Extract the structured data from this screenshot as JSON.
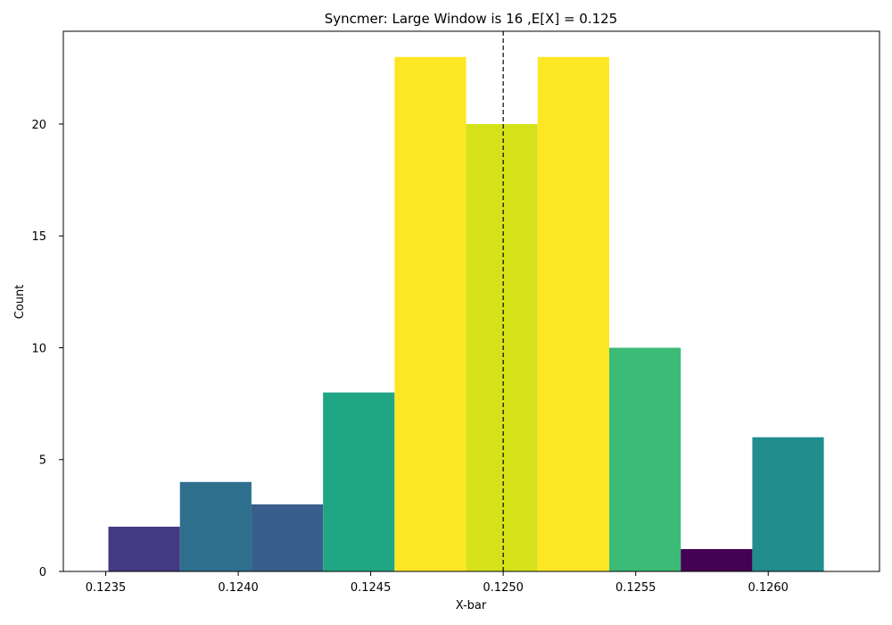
{
  "chart_data": {
    "type": "bar",
    "title": "Syncmer: Large Window is 16 ,E[X] = 0.125",
    "xlabel": "X-bar",
    "ylabel": "Count",
    "xlim": [
      0.12334,
      0.12642
    ],
    "ylim": [
      0,
      24.15
    ],
    "bins": [
      {
        "x0": 0.12351,
        "x1": 0.12378,
        "count": 2,
        "color": "#443983"
      },
      {
        "x0": 0.12378,
        "x1": 0.12405,
        "count": 4,
        "color": "#2e6f8e"
      },
      {
        "x0": 0.12405,
        "x1": 0.12432,
        "count": 3,
        "color": "#3a5e8c"
      },
      {
        "x0": 0.12432,
        "x1": 0.12459,
        "count": 8,
        "color": "#21a685"
      },
      {
        "x0": 0.12459,
        "x1": 0.12486,
        "count": 23,
        "color": "#fde725"
      },
      {
        "x0": 0.12486,
        "x1": 0.12513,
        "count": 20,
        "color": "#d5e21a"
      },
      {
        "x0": 0.12513,
        "x1": 0.1254,
        "count": 23,
        "color": "#fde725"
      },
      {
        "x0": 0.1254,
        "x1": 0.12567,
        "count": 10,
        "color": "#3bbb75"
      },
      {
        "x0": 0.12567,
        "x1": 0.12594,
        "count": 1,
        "color": "#440154"
      },
      {
        "x0": 0.12594,
        "x1": 0.12621,
        "count": 6,
        "color": "#228d8d"
      }
    ],
    "xticks": [
      0.1235,
      0.124,
      0.1245,
      0.125,
      0.1255,
      0.126
    ],
    "xtick_labels": [
      "0.1235",
      "0.1240",
      "0.1245",
      "0.1250",
      "0.1255",
      "0.1260"
    ],
    "yticks": [
      0,
      5,
      10,
      15,
      20
    ],
    "ytick_labels": [
      "0",
      "5",
      "10",
      "15",
      "20"
    ],
    "reference_line": {
      "x": 0.125,
      "style": "dashed",
      "color": "#000000"
    },
    "grid": false,
    "legend": "none"
  }
}
